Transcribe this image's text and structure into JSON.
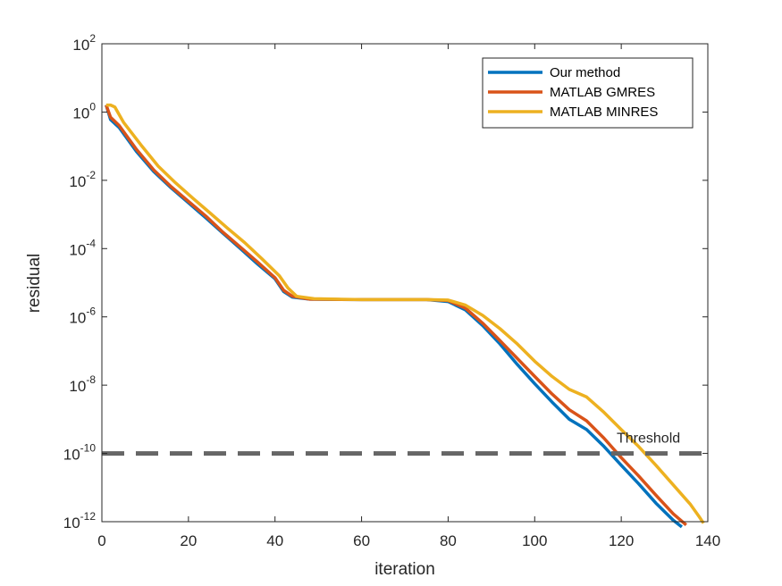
{
  "chart_data": {
    "type": "line",
    "title": "",
    "xlabel": "iteration",
    "ylabel": "residual",
    "xlim": [
      0,
      140
    ],
    "ylim": [
      1e-12,
      100
    ],
    "yscale": "log",
    "xticks": [
      "0",
      "20",
      "40",
      "60",
      "80",
      "100",
      "120",
      "140"
    ],
    "yticks": [
      {
        "base": "10",
        "exp": "-12"
      },
      {
        "base": "10",
        "exp": "-10"
      },
      {
        "base": "10",
        "exp": "-8"
      },
      {
        "base": "10",
        "exp": "-6"
      },
      {
        "base": "10",
        "exp": "-4"
      },
      {
        "base": "10",
        "exp": "-2"
      },
      {
        "base": "10",
        "exp": "0"
      },
      {
        "base": "10",
        "exp": "2"
      }
    ],
    "grid": false,
    "legend_position": "top-right",
    "series": [
      {
        "name": "Our method",
        "color": "#0072BD",
        "points": [
          [
            1,
            1.6
          ],
          [
            2,
            0.6
          ],
          [
            4,
            0.35
          ],
          [
            8,
            0.07
          ],
          [
            12,
            0.018
          ],
          [
            16,
            0.006
          ],
          [
            20,
            0.0022
          ],
          [
            24,
            0.0008
          ],
          [
            28,
            0.00028
          ],
          [
            32,
            0.0001
          ],
          [
            36,
            3.5e-05
          ],
          [
            40,
            1.3e-05
          ],
          [
            42,
            5.5e-06
          ],
          [
            44,
            3.8e-06
          ],
          [
            48,
            3.3e-06
          ],
          [
            60,
            3.2e-06
          ],
          [
            75,
            3.2e-06
          ],
          [
            80,
            2.8e-06
          ],
          [
            84,
            1.6e-06
          ],
          [
            88,
            5.5e-07
          ],
          [
            92,
            1.6e-07
          ],
          [
            96,
            4e-08
          ],
          [
            100,
            1.1e-08
          ],
          [
            104,
            3.2e-09
          ],
          [
            108,
            1e-09
          ],
          [
            112,
            5e-10
          ],
          [
            116,
            1.6e-10
          ],
          [
            120,
            4.5e-11
          ],
          [
            124,
            1.3e-11
          ],
          [
            128,
            3.5e-12
          ],
          [
            132,
            1.1e-12
          ],
          [
            134,
            7e-13
          ]
        ]
      },
      {
        "name": "MATLAB GMRES",
        "color": "#D95319",
        "points": [
          [
            1,
            1.6
          ],
          [
            2,
            0.7
          ],
          [
            4,
            0.4
          ],
          [
            8,
            0.08
          ],
          [
            12,
            0.02
          ],
          [
            16,
            0.0065
          ],
          [
            20,
            0.0024
          ],
          [
            24,
            0.0009
          ],
          [
            28,
            0.0003
          ],
          [
            32,
            0.00011
          ],
          [
            36,
            4e-05
          ],
          [
            40,
            1.4e-05
          ],
          [
            42,
            6e-06
          ],
          [
            44,
            4e-06
          ],
          [
            48,
            3.3e-06
          ],
          [
            60,
            3.2e-06
          ],
          [
            75,
            3.2e-06
          ],
          [
            80,
            3e-06
          ],
          [
            84,
            1.8e-06
          ],
          [
            88,
            6.5e-07
          ],
          [
            92,
            2e-07
          ],
          [
            96,
            6e-08
          ],
          [
            100,
            1.8e-08
          ],
          [
            104,
            5.5e-09
          ],
          [
            108,
            1.9e-09
          ],
          [
            112,
            9e-10
          ],
          [
            116,
            2.8e-10
          ],
          [
            120,
            7.5e-11
          ],
          [
            124,
            2.2e-11
          ],
          [
            128,
            6e-12
          ],
          [
            132,
            1.7e-12
          ],
          [
            135,
            8e-13
          ]
        ]
      },
      {
        "name": "MATLAB MINRES",
        "color": "#EDB120",
        "points": [
          [
            1,
            1.6
          ],
          [
            2,
            1.6
          ],
          [
            3,
            1.4
          ],
          [
            5,
            0.5
          ],
          [
            9,
            0.11
          ],
          [
            13,
            0.026
          ],
          [
            17,
            0.0085
          ],
          [
            21,
            0.003
          ],
          [
            25,
            0.0011
          ],
          [
            29,
            0.0004
          ],
          [
            33,
            0.00015
          ],
          [
            37,
            5e-05
          ],
          [
            41,
            1.6e-05
          ],
          [
            43,
            7e-06
          ],
          [
            45,
            4e-06
          ],
          [
            49,
            3.4e-06
          ],
          [
            60,
            3.2e-06
          ],
          [
            75,
            3.2e-06
          ],
          [
            80,
            3.1e-06
          ],
          [
            84,
            2.2e-06
          ],
          [
            88,
            1.1e-06
          ],
          [
            92,
            4.5e-07
          ],
          [
            96,
            1.6e-07
          ],
          [
            100,
            5e-08
          ],
          [
            104,
            1.8e-08
          ],
          [
            108,
            7.5e-09
          ],
          [
            112,
            4.5e-09
          ],
          [
            116,
            1.6e-09
          ],
          [
            120,
            5e-10
          ],
          [
            124,
            1.6e-10
          ],
          [
            128,
            4.5e-11
          ],
          [
            132,
            1.2e-11
          ],
          [
            136,
            3.2e-12
          ],
          [
            138,
            1.4e-12
          ],
          [
            139,
            9e-13
          ]
        ]
      }
    ],
    "threshold": {
      "label": "Threshold",
      "value": 1e-10,
      "color": "#666666"
    }
  }
}
